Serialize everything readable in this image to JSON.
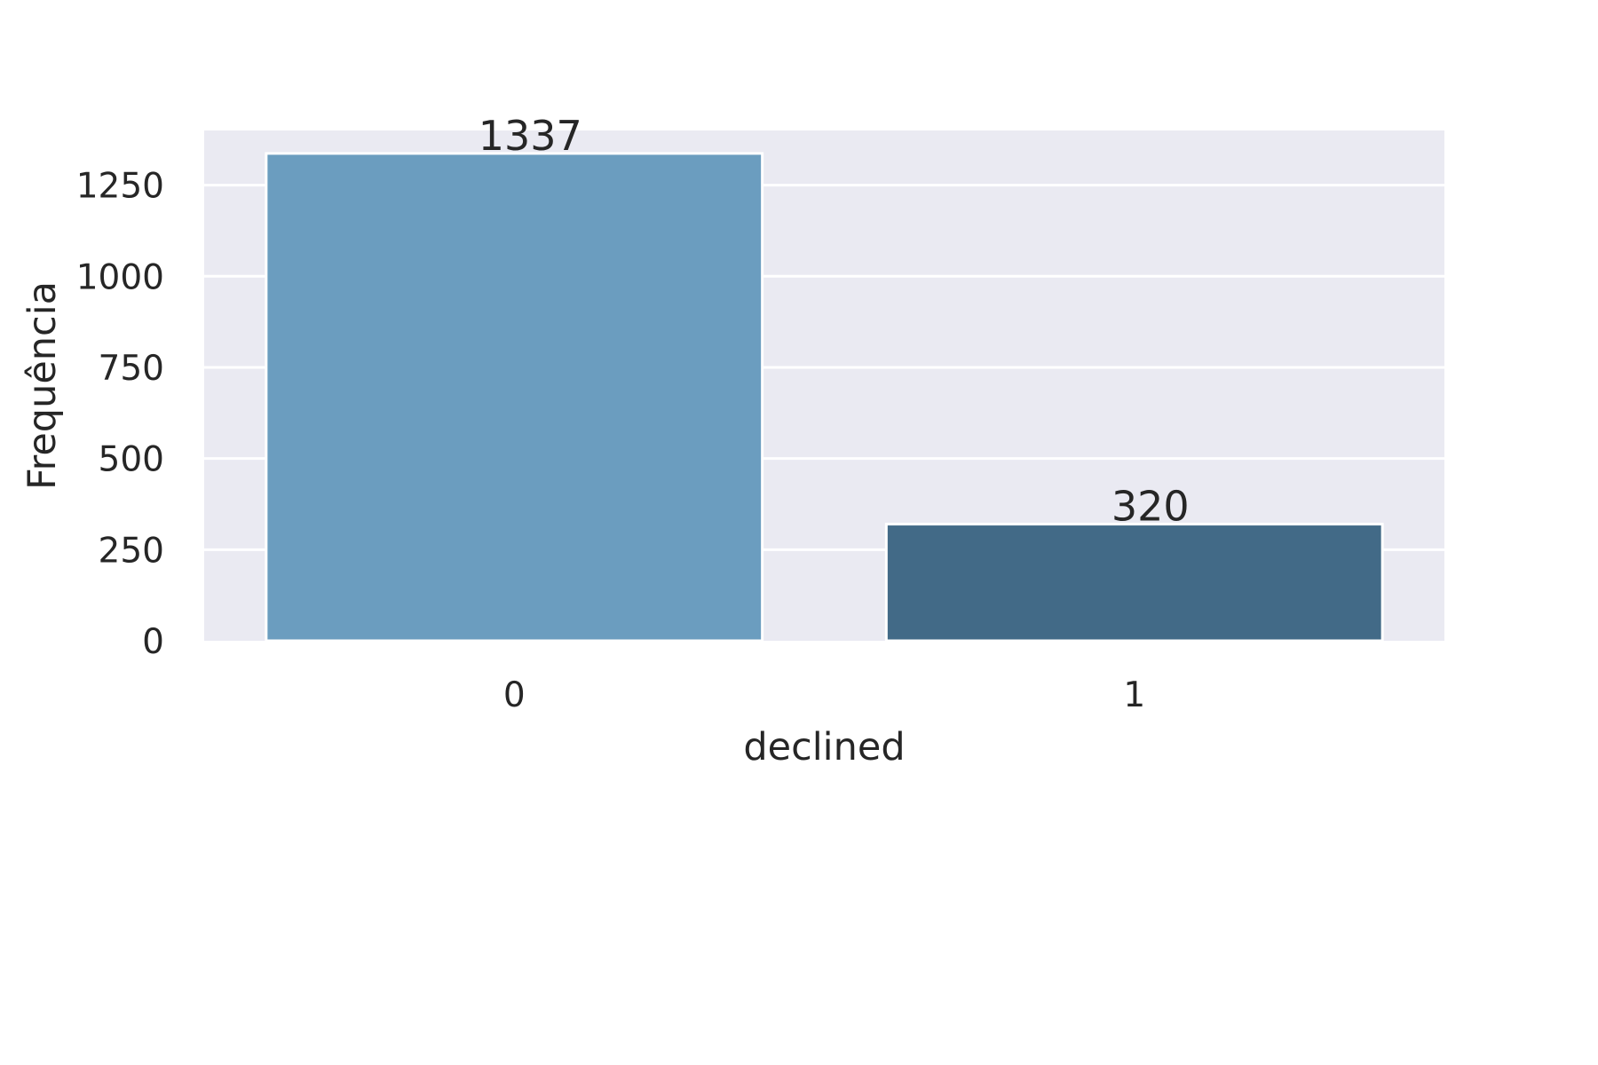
{
  "chart_data": {
    "type": "bar",
    "categories": [
      "0",
      "1"
    ],
    "values": [
      1337,
      320
    ],
    "data_labels": [
      "1337",
      "320"
    ],
    "title": "",
    "xlabel": "declined",
    "ylabel": "Frequência",
    "ylim": [
      0,
      1400
    ],
    "yticks": [
      0,
      250,
      500,
      750,
      1000,
      1250
    ],
    "ytick_labels": [
      "0",
      "250",
      "500",
      "750",
      "1000",
      "1250"
    ],
    "grid": true,
    "legend": false,
    "colors": {
      "plot_background": "#eaeaf2",
      "grid": "#ffffff",
      "bars": [
        "#6b9dbf",
        "#426a87"
      ],
      "bar_edge": "#ffffff",
      "text": "#262626"
    }
  }
}
